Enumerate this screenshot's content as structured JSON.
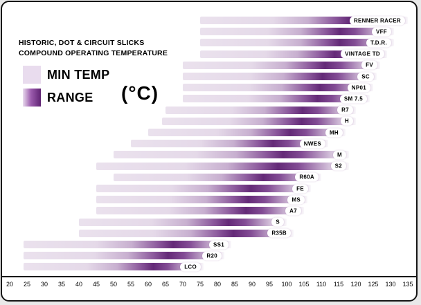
{
  "title": {
    "line1": "HISTORIC, DOT & CIRCUIT SLICKS",
    "line2": "COMPOUND OPERATING TEMPERATURE"
  },
  "legend": {
    "min_temp_label": "MIN TEMP",
    "range_label": "RANGE",
    "unit_label": "(°C)"
  },
  "colors": {
    "bar_dark": "#6d2d82",
    "bar_light": "#e9dcee",
    "panel": "#ffffff",
    "border": "#141414",
    "outer_background": "#e9e9e9"
  },
  "chart_data": {
    "type": "bar",
    "orientation": "horizontal",
    "title": "HISTORIC, DOT & CIRCUIT SLICKS COMPOUND OPERATING TEMPERATURE",
    "unit": "°C",
    "xlim": [
      20,
      135
    ],
    "x_ticks": [
      20,
      25,
      30,
      35,
      40,
      45,
      50,
      55,
      60,
      65,
      70,
      75,
      80,
      85,
      90,
      95,
      100,
      105,
      110,
      115,
      120,
      125,
      130,
      135
    ],
    "grid": false,
    "legend_position": "top-left",
    "series": [
      {
        "name": "RENNER RACER",
        "min_temp": 75,
        "max_temp": 135
      },
      {
        "name": "VFF",
        "min_temp": 75,
        "max_temp": 131
      },
      {
        "name": "T.D.R.",
        "min_temp": 75,
        "max_temp": 131
      },
      {
        "name": "VINTAGE TD",
        "min_temp": 75,
        "max_temp": 129
      },
      {
        "name": "FV",
        "min_temp": 70,
        "max_temp": 127
      },
      {
        "name": "SC",
        "min_temp": 70,
        "max_temp": 126
      },
      {
        "name": "NP01",
        "min_temp": 70,
        "max_temp": 125
      },
      {
        "name": "SM 7.5",
        "min_temp": 70,
        "max_temp": 124
      },
      {
        "name": "R7",
        "min_temp": 65,
        "max_temp": 120
      },
      {
        "name": "H",
        "min_temp": 64,
        "max_temp": 120
      },
      {
        "name": "MH",
        "min_temp": 60,
        "max_temp": 117
      },
      {
        "name": "NWES",
        "min_temp": 55,
        "max_temp": 112
      },
      {
        "name": "M",
        "min_temp": 50,
        "max_temp": 118
      },
      {
        "name": "S2",
        "min_temp": 45,
        "max_temp": 118
      },
      {
        "name": "R60A",
        "min_temp": 50,
        "max_temp": 110
      },
      {
        "name": "FE",
        "min_temp": 45,
        "max_temp": 107
      },
      {
        "name": "MS",
        "min_temp": 45,
        "max_temp": 106
      },
      {
        "name": "A7",
        "min_temp": 45,
        "max_temp": 105
      },
      {
        "name": "S",
        "min_temp": 40,
        "max_temp": 100
      },
      {
        "name": "R35B",
        "min_temp": 40,
        "max_temp": 102
      },
      {
        "name": "SS1",
        "min_temp": 24,
        "max_temp": 84
      },
      {
        "name": "R20",
        "min_temp": 24,
        "max_temp": 82
      },
      {
        "name": "LCO",
        "min_temp": 24,
        "max_temp": 76
      }
    ]
  }
}
